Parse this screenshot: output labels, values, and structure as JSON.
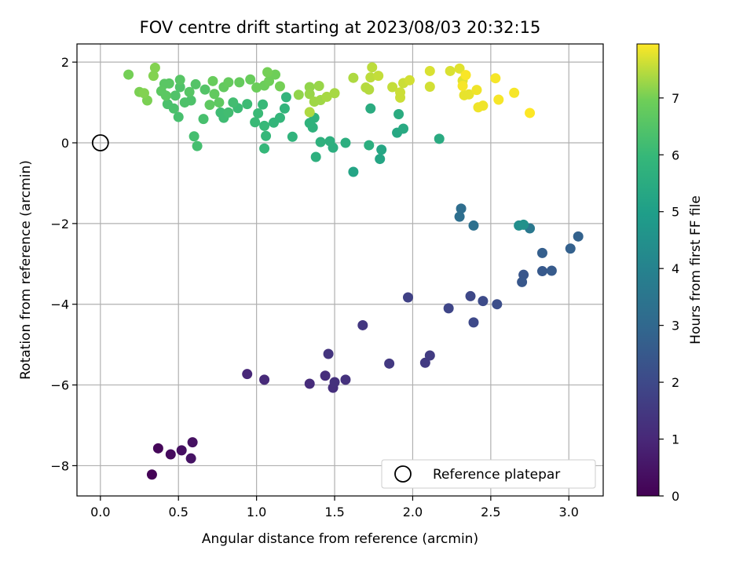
{
  "chart_data": {
    "type": "scatter",
    "title": "FOV centre drift starting at 2023/08/03 20:32:15",
    "xlabel": "Angular distance from reference (arcmin)",
    "ylabel": "Rotation from reference (arcmin)",
    "xlim": [
      -0.15,
      3.22
    ],
    "ylim": [
      -8.75,
      2.45
    ],
    "xticks": [
      "0.0",
      "0.5",
      "1.0",
      "1.5",
      "2.0",
      "2.5",
      "3.0"
    ],
    "xtick_values": [
      0,
      0.5,
      1.0,
      1.5,
      2.0,
      2.5,
      3.0
    ],
    "yticks": [
      "2",
      "0",
      "−2",
      "−4",
      "−6",
      "−8"
    ],
    "ytick_values": [
      2,
      0,
      -2,
      -4,
      -6,
      -8
    ],
    "grid": true,
    "legend": {
      "label": "Reference platepar",
      "placement": "lower-right"
    },
    "reference_point": {
      "x": 0.0,
      "y": 0.0
    },
    "colormap": "viridis",
    "colorbar": {
      "label": "Hours from first FF file",
      "range": [
        0,
        7.95
      ],
      "ticks": [
        "0",
        "1",
        "2",
        "3",
        "4",
        "5",
        "6",
        "7"
      ],
      "tick_values": [
        0,
        1,
        2,
        3,
        4,
        5,
        6,
        7
      ]
    },
    "points": [
      [
        0.33,
        -8.22,
        0.05
      ],
      [
        0.37,
        -7.57,
        0.15
      ],
      [
        0.45,
        -7.72,
        0.25
      ],
      [
        0.52,
        -7.62,
        0.35
      ],
      [
        0.59,
        -7.42,
        0.4
      ],
      [
        0.58,
        -7.82,
        0.45
      ],
      [
        0.94,
        -5.73,
        1.0
      ],
      [
        1.05,
        -5.87,
        1.05
      ],
      [
        1.34,
        -5.97,
        1.1
      ],
      [
        1.44,
        -5.77,
        1.15
      ],
      [
        1.49,
        -6.07,
        1.2
      ],
      [
        1.5,
        -5.93,
        1.25
      ],
      [
        1.57,
        -5.87,
        1.3
      ],
      [
        1.46,
        -5.23,
        1.35
      ],
      [
        1.68,
        -4.52,
        1.45
      ],
      [
        1.85,
        -5.47,
        1.5
      ],
      [
        2.08,
        -5.45,
        1.55
      ],
      [
        2.11,
        -5.27,
        1.6
      ],
      [
        1.97,
        -3.83,
        1.75
      ],
      [
        2.23,
        -4.1,
        1.9
      ],
      [
        2.37,
        -3.8,
        1.95
      ],
      [
        2.39,
        -4.45,
        2.0
      ],
      [
        2.45,
        -3.92,
        2.05
      ],
      [
        2.54,
        -4.0,
        2.15
      ],
      [
        2.71,
        -3.27,
        2.4
      ],
      [
        2.7,
        -3.45,
        2.45
      ],
      [
        2.83,
        -3.18,
        2.5
      ],
      [
        2.89,
        -3.17,
        2.55
      ],
      [
        2.83,
        -2.73,
        2.7
      ],
      [
        3.01,
        -2.62,
        2.75
      ],
      [
        3.06,
        -2.32,
        2.8
      ],
      [
        2.31,
        -1.63,
        3.2
      ],
      [
        2.3,
        -1.83,
        3.25
      ],
      [
        2.39,
        -2.05,
        3.3
      ],
      [
        2.75,
        -2.12,
        3.6
      ],
      [
        2.68,
        -2.05,
        4.4
      ],
      [
        2.71,
        -2.03,
        4.5
      ],
      [
        1.62,
        -0.72,
        5.2
      ],
      [
        1.79,
        -0.4,
        5.25
      ],
      [
        1.8,
        -0.17,
        5.3
      ],
      [
        1.9,
        0.25,
        5.35
      ],
      [
        1.94,
        0.35,
        5.4
      ],
      [
        2.17,
        0.1,
        5.45
      ],
      [
        1.91,
        0.71,
        5.5
      ],
      [
        1.73,
        0.85,
        5.5
      ],
      [
        1.72,
        -0.06,
        5.6
      ],
      [
        1.57,
        0.0,
        5.6
      ],
      [
        1.49,
        -0.12,
        5.62
      ],
      [
        1.47,
        0.04,
        5.65
      ],
      [
        1.38,
        -0.35,
        5.65
      ],
      [
        1.41,
        0.02,
        5.7
      ],
      [
        1.36,
        0.38,
        5.72
      ],
      [
        1.37,
        0.62,
        5.75
      ],
      [
        1.34,
        0.49,
        5.75
      ],
      [
        1.23,
        0.15,
        5.8
      ],
      [
        1.18,
        0.85,
        5.85
      ],
      [
        1.19,
        1.13,
        5.85
      ],
      [
        1.15,
        0.62,
        5.9
      ],
      [
        1.11,
        0.5,
        5.9
      ],
      [
        1.05,
        -0.14,
        5.95
      ],
      [
        1.06,
        0.17,
        5.95
      ],
      [
        1.05,
        0.42,
        6.0
      ],
      [
        1.04,
        0.95,
        6.0
      ],
      [
        1.01,
        0.73,
        6.05
      ],
      [
        0.99,
        0.51,
        6.05
      ],
      [
        0.94,
        0.96,
        6.1
      ],
      [
        0.88,
        0.86,
        6.1
      ],
      [
        0.79,
        0.62,
        6.15
      ],
      [
        0.77,
        0.75,
        6.15
      ],
      [
        0.82,
        0.75,
        6.2
      ],
      [
        0.85,
        1.0,
        6.2
      ],
      [
        0.62,
        -0.08,
        6.25
      ],
      [
        0.6,
        0.16,
        6.25
      ],
      [
        0.66,
        0.59,
        6.3
      ],
      [
        0.5,
        0.64,
        6.3
      ],
      [
        0.47,
        0.85,
        6.35
      ],
      [
        0.43,
        0.96,
        6.35
      ],
      [
        0.54,
        1.0,
        6.4
      ],
      [
        0.58,
        1.05,
        6.4
      ],
      [
        0.48,
        1.17,
        6.45
      ],
      [
        0.51,
        1.38,
        6.45
      ],
      [
        0.61,
        1.45,
        6.5
      ],
      [
        0.67,
        1.32,
        6.5
      ],
      [
        0.57,
        1.26,
        6.55
      ],
      [
        0.51,
        1.56,
        6.55
      ],
      [
        0.41,
        1.46,
        6.6
      ],
      [
        0.44,
        1.47,
        6.6
      ],
      [
        0.39,
        1.28,
        6.65
      ],
      [
        0.42,
        1.17,
        6.65
      ],
      [
        0.7,
        0.94,
        6.7
      ],
      [
        0.76,
        1.0,
        6.7
      ],
      [
        0.73,
        1.21,
        6.75
      ],
      [
        0.79,
        1.38,
        6.75
      ],
      [
        0.82,
        1.5,
        6.8
      ],
      [
        0.89,
        1.5,
        6.8
      ],
      [
        0.72,
        1.53,
        6.85
      ],
      [
        0.96,
        1.57,
        6.85
      ],
      [
        1.0,
        1.37,
        6.9
      ],
      [
        1.05,
        1.42,
        6.9
      ],
      [
        1.08,
        1.53,
        6.95
      ],
      [
        1.12,
        1.69,
        6.95
      ],
      [
        1.07,
        1.75,
        7.0
      ],
      [
        1.15,
        1.4,
        7.0
      ],
      [
        0.18,
        1.69,
        7.0
      ],
      [
        0.25,
        1.26,
        7.05
      ],
      [
        0.3,
        1.05,
        7.05
      ],
      [
        0.28,
        1.23,
        7.1
      ],
      [
        0.34,
        1.66,
        7.1
      ],
      [
        0.35,
        1.86,
        7.1
      ],
      [
        1.27,
        1.19,
        7.2
      ],
      [
        1.34,
        1.38,
        7.2
      ],
      [
        1.34,
        1.21,
        7.25
      ],
      [
        1.4,
        1.41,
        7.25
      ],
      [
        1.41,
        1.06,
        7.3
      ],
      [
        1.37,
        1.02,
        7.3
      ],
      [
        1.45,
        1.14,
        7.35
      ],
      [
        1.5,
        1.23,
        7.35
      ],
      [
        1.34,
        0.76,
        7.4
      ],
      [
        1.62,
        1.61,
        7.4
      ],
      [
        1.7,
        1.37,
        7.45
      ],
      [
        1.72,
        1.32,
        7.45
      ],
      [
        1.73,
        1.62,
        7.5
      ],
      [
        1.74,
        1.87,
        7.5
      ],
      [
        1.78,
        1.66,
        7.55
      ],
      [
        1.87,
        1.38,
        7.55
      ],
      [
        1.92,
        1.12,
        7.6
      ],
      [
        1.92,
        1.25,
        7.6
      ],
      [
        1.94,
        1.48,
        7.6
      ],
      [
        1.98,
        1.55,
        7.65
      ],
      [
        2.11,
        1.39,
        7.65
      ],
      [
        2.11,
        1.78,
        7.7
      ],
      [
        2.24,
        1.78,
        7.7
      ],
      [
        2.3,
        1.84,
        7.75
      ],
      [
        2.32,
        1.54,
        7.75
      ],
      [
        2.33,
        1.18,
        7.8
      ],
      [
        2.36,
        1.2,
        7.8
      ],
      [
        2.41,
        1.31,
        7.85
      ],
      [
        2.42,
        0.88,
        7.85
      ],
      [
        2.45,
        0.92,
        7.85
      ],
      [
        2.53,
        1.6,
        7.9
      ],
      [
        2.55,
        1.07,
        7.9
      ],
      [
        2.65,
        1.24,
        7.9
      ],
      [
        2.75,
        0.74,
        7.95
      ],
      [
        2.32,
        1.41,
        7.9
      ],
      [
        2.34,
        1.68,
        7.92
      ]
    ]
  }
}
